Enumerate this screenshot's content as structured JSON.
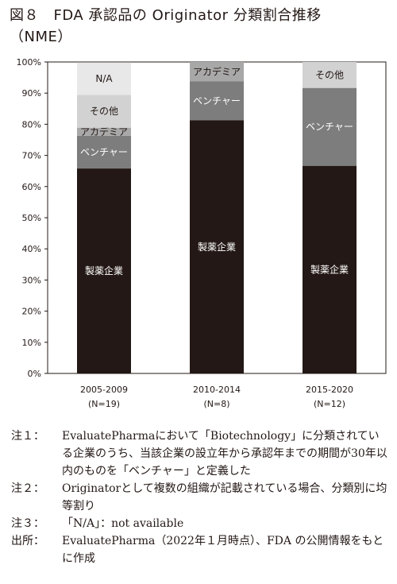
{
  "title": {
    "line1": "図８　FDA 承認品の Originator 分類割合推移",
    "line2": "（NME）"
  },
  "chart_data": {
    "type": "bar",
    "stacked": true,
    "categories": [
      "2005-2009\n(N=19)",
      "2010-2014\n(N=8)",
      "2015-2020\n(N=12)"
    ],
    "yaxis": {
      "ticks": [
        "0%",
        "10%",
        "20%",
        "30%",
        "40%",
        "50%",
        "60%",
        "70%",
        "80%",
        "90%",
        "100%"
      ],
      "ylim": [
        0,
        100
      ]
    },
    "series": [
      {
        "name": "製薬企業",
        "color": "#231815",
        "labelColor": "#ffffff",
        "values": [
          65.8,
          81.25,
          66.67
        ]
      },
      {
        "name": "ベンチャー",
        "color": "#7d7d7d",
        "labelColor": "#ffffff",
        "values": [
          10.5,
          12.5,
          25.0
        ]
      },
      {
        "name": "アカデミア",
        "color": "#a8a8a8",
        "labelColor": "#231815",
        "values": [
          2.6,
          6.25,
          0
        ]
      },
      {
        "name": "その他",
        "color": "#d2d2d2",
        "labelColor": "#231815",
        "values": [
          10.5,
          0,
          8.33
        ]
      },
      {
        "name": "N/A",
        "color": "#e8e8e8",
        "labelColor": "#231815",
        "values": [
          10.5,
          0,
          0
        ]
      }
    ]
  },
  "notes": [
    {
      "label": "注１：",
      "text": "EvaluatePharmaにおいて「Biotechnology」に分類されている企業のうち、当該企業の設立年から承認年までの期間が30年以内のものを「ベンチャー」と定義した"
    },
    {
      "label": "注２：",
      "text": "Originatorとして複数の組織が記載されている場合、分類別に均等割り"
    },
    {
      "label": "注３：",
      "text": "「N/A」：not available"
    },
    {
      "label": "出所：",
      "text": "EvaluatePharma（2022年１月時点）、FDA の公開情報をもとに作成"
    }
  ]
}
